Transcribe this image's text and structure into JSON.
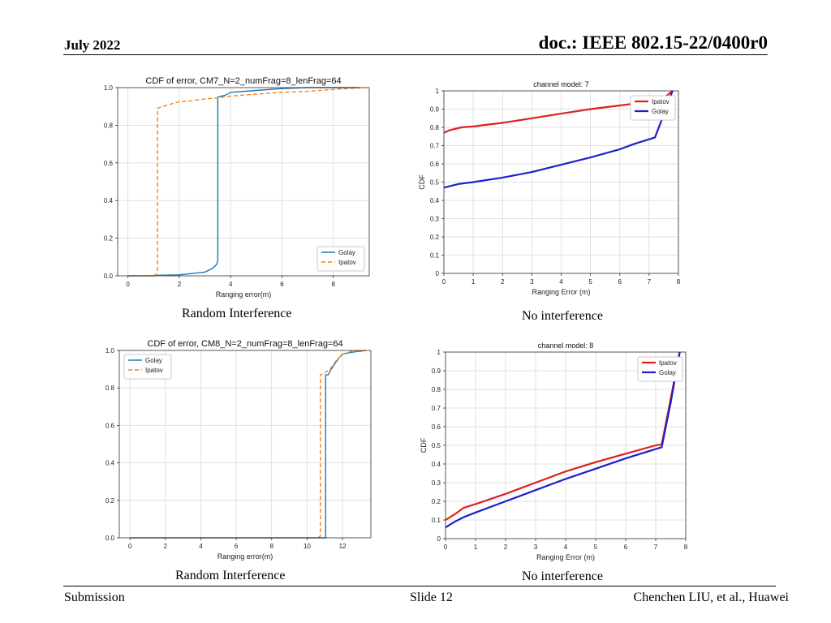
{
  "header": {
    "date": "July 2022",
    "doc_id": "doc.: IEEE 802.15-22/0400r0"
  },
  "footer": {
    "left": "Submission",
    "center": "Slide 12",
    "right": "Chenchen LIU, et al., Huawei"
  },
  "captions": [
    "Random Interference",
    "No interference",
    "Random Interference",
    "No interference"
  ],
  "colors": {
    "golay_tl": "#1f77b4",
    "ipatov_tl": "#ff7f0e",
    "ipatov_red": "#e02020",
    "golay_blue": "#1f1fc8"
  },
  "chart_data": [
    {
      "type": "line",
      "title": "CDF of error, CM7_N=2_numFrag=8_lenFrag=64",
      "xlabel": "Ranging error(m)",
      "ylabel": "",
      "xlim": [
        -0.4,
        9.4
      ],
      "ylim": [
        0,
        1.0
      ],
      "xticks": [
        0,
        2,
        4,
        6,
        8
      ],
      "yticks": [
        0.0,
        0.2,
        0.4,
        0.6,
        0.8,
        1.0
      ],
      "ytick_labels": [
        "0.0",
        "0.2",
        "0.4",
        "0.6",
        "0.8",
        "1.0"
      ],
      "grid": true,
      "legend": "bottom-right",
      "series": [
        {
          "name": "Golay",
          "color": "#1f77b4",
          "dash": "",
          "x": [
            0,
            1,
            1.2,
            2,
            3,
            3.3,
            3.45,
            3.5,
            3.5,
            3.8,
            4,
            5,
            6,
            7,
            8,
            9
          ],
          "y": [
            0,
            0,
            0.003,
            0.005,
            0.02,
            0.04,
            0.06,
            0.08,
            0.95,
            0.96,
            0.975,
            0.985,
            0.995,
            1.0,
            1.0,
            1.0
          ]
        },
        {
          "name": "Ipatov",
          "color": "#ff7f0e",
          "dash": "5,3",
          "x": [
            0,
            0.8,
            1.1,
            1.15,
            1.15,
            1.6,
            2,
            2.5,
            3,
            3.5,
            4,
            5,
            6,
            7,
            8,
            9.2
          ],
          "y": [
            0,
            0,
            0.005,
            0.02,
            0.89,
            0.91,
            0.925,
            0.93,
            0.94,
            0.945,
            0.955,
            0.965,
            0.975,
            0.98,
            0.99,
            1.0
          ]
        }
      ]
    },
    {
      "type": "line",
      "title": "channel model: 7",
      "xlabel": "Ranging Error (m)",
      "ylabel": "CDF",
      "xlim": [
        0,
        8
      ],
      "ylim": [
        0,
        1
      ],
      "xticks": [
        0,
        1,
        2,
        3,
        4,
        5,
        6,
        7,
        8
      ],
      "yticks": [
        0,
        0.1,
        0.2,
        0.3,
        0.4,
        0.5,
        0.6,
        0.7,
        0.8,
        0.9,
        1
      ],
      "ytick_labels": [
        "0",
        "0.1",
        "0.2",
        "0.3",
        "0.4",
        "0.5",
        "0.6",
        "0.7",
        "0.8",
        "0.9",
        "1"
      ],
      "grid": true,
      "legend": "top-right",
      "series": [
        {
          "name": "Ipatov",
          "color": "#e02020",
          "dash": "",
          "x": [
            0,
            0.2,
            0.6,
            1,
            2,
            3,
            4,
            5,
            6,
            7,
            7.5,
            7.8
          ],
          "y": [
            0.77,
            0.785,
            0.8,
            0.805,
            0.825,
            0.85,
            0.875,
            0.9,
            0.92,
            0.94,
            0.96,
            1.0
          ]
        },
        {
          "name": "Golay",
          "color": "#1f1fc8",
          "dash": "",
          "x": [
            0,
            0.5,
            1,
            2,
            3,
            4,
            5,
            6,
            6.5,
            7.2,
            7.5,
            7.8
          ],
          "y": [
            0.47,
            0.49,
            0.5,
            0.525,
            0.555,
            0.595,
            0.635,
            0.68,
            0.71,
            0.745,
            0.87,
            1.0
          ]
        }
      ]
    },
    {
      "type": "line",
      "title": "CDF of error, CM8_N=2_numFrag=8_lenFrag=64",
      "xlabel": "Ranging error(m)",
      "ylabel": "",
      "xlim": [
        -0.6,
        13.6
      ],
      "ylim": [
        0,
        1.0
      ],
      "xticks": [
        0,
        2,
        4,
        6,
        8,
        10,
        12
      ],
      "yticks": [
        0.0,
        0.2,
        0.4,
        0.6,
        0.8,
        1.0
      ],
      "ytick_labels": [
        "0.0",
        "0.2",
        "0.4",
        "0.6",
        "0.8",
        "1.0"
      ],
      "grid": true,
      "legend": "top-left",
      "series": [
        {
          "name": "Golay",
          "color": "#1f77b4",
          "dash": "",
          "x": [
            0,
            10.9,
            11.05,
            11.05,
            11.2,
            11.3,
            11.5,
            11.8,
            12,
            12.5,
            13.3
          ],
          "y": [
            0,
            0,
            0,
            0.87,
            0.87,
            0.89,
            0.92,
            0.96,
            0.98,
            0.99,
            1.0
          ]
        },
        {
          "name": "Ipatov",
          "color": "#ff7f0e",
          "dash": "5,3",
          "x": [
            0,
            10.6,
            10.75,
            10.75,
            11,
            11.3,
            11.6,
            12,
            12.5,
            13.3
          ],
          "y": [
            0,
            0,
            0.01,
            0.87,
            0.88,
            0.9,
            0.94,
            0.98,
            0.995,
            1.0
          ]
        }
      ]
    },
    {
      "type": "line",
      "title": "channel model: 8",
      "xlabel": "Ranging Error (m)",
      "ylabel": "CDF",
      "xlim": [
        0,
        8
      ],
      "ylim": [
        0,
        1
      ],
      "xticks": [
        0,
        1,
        2,
        3,
        4,
        5,
        6,
        7,
        8
      ],
      "yticks": [
        0,
        0.1,
        0.2,
        0.3,
        0.4,
        0.5,
        0.6,
        0.7,
        0.8,
        0.9,
        1
      ],
      "ytick_labels": [
        "0",
        "0.1",
        "0.2",
        "0.3",
        "0.4",
        "0.5",
        "0.6",
        "0.7",
        "0.8",
        "0.9",
        "1"
      ],
      "grid": true,
      "legend": "top-right",
      "series": [
        {
          "name": "Ipatov",
          "color": "#e02020",
          "dash": "",
          "x": [
            0,
            0.3,
            0.6,
            1,
            2,
            3,
            4,
            5,
            6,
            7,
            7.2,
            7.5,
            7.8
          ],
          "y": [
            0.1,
            0.13,
            0.165,
            0.185,
            0.24,
            0.3,
            0.36,
            0.41,
            0.455,
            0.5,
            0.505,
            0.75,
            1.0
          ]
        },
        {
          "name": "Golay",
          "color": "#1f1fc8",
          "dash": "",
          "x": [
            0,
            0.3,
            0.6,
            1,
            2,
            3,
            4,
            5,
            6,
            7,
            7.2,
            7.5,
            7.8
          ],
          "y": [
            0.06,
            0.09,
            0.115,
            0.14,
            0.2,
            0.26,
            0.32,
            0.375,
            0.43,
            0.48,
            0.49,
            0.73,
            1.0
          ]
        }
      ]
    }
  ]
}
